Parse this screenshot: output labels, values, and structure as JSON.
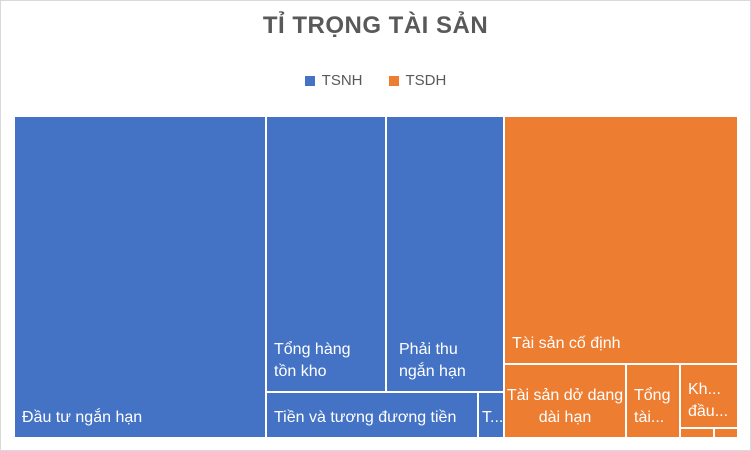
{
  "chart_data": {
    "type": "treemap",
    "title": "TỈ TRỌNG TÀI SẢN",
    "legend": {
      "position": "top",
      "entries": [
        {
          "name": "TSNH",
          "color": "#4472c4"
        },
        {
          "name": "TSDH",
          "color": "#ed7d31"
        }
      ]
    },
    "groups": [
      {
        "name": "TSNH",
        "color": "#4472c4",
        "items": [
          {
            "label": "Đầu tư ngắn hạn",
            "value": 31.5
          },
          {
            "label": "Tổng hàng tồn kho",
            "value": 9.8
          },
          {
            "label": "Phải thu ngắn hạn",
            "value": 9.5
          },
          {
            "label": "Tiền và tương đương tiền",
            "value": 5.2
          },
          {
            "label": "T...",
            "value": 0.7
          }
        ]
      },
      {
        "name": "TSDH",
        "color": "#ed7d31",
        "items": [
          {
            "label": "Tài sản cố định",
            "value": 23.5
          },
          {
            "label": "Tài sản dở dang dài hạn",
            "value": 6.3
          },
          {
            "label": "Tổng tài...",
            "value": 2.8
          },
          {
            "label": "Kh... đầu...",
            "value": 3.0
          },
          {
            "label": "",
            "value": 0.6
          },
          {
            "label": "",
            "value": 0.2
          }
        ]
      }
    ]
  }
}
